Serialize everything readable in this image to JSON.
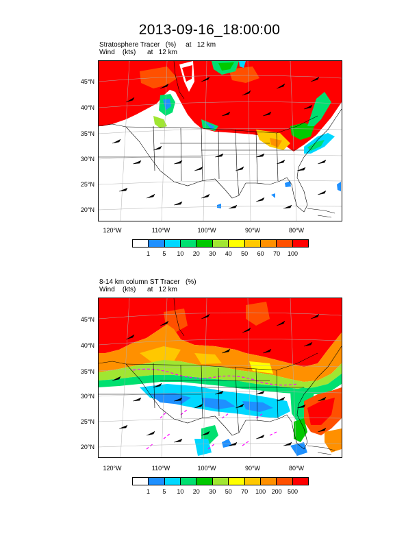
{
  "title": "2013-09-16_18:00:00",
  "panels": [
    {
      "title_line1": "Stratosphere Tracer   (%)     at   12 km",
      "title_line2": "Wind    (kts)      at   12 km",
      "lat_labels": [
        "45°N",
        "40°N",
        "35°N",
        "30°N",
        "25°N",
        "20°N"
      ],
      "lon_labels": [
        "120°W",
        "110°W",
        "100°W",
        "90°W",
        "80°W"
      ],
      "colorbar": {
        "labels": [
          "1",
          "5",
          "10",
          "20",
          "30",
          "40",
          "50",
          "60",
          "70",
          "100"
        ],
        "colors": [
          "#ffffff",
          "#1e90ff",
          "#00d8ff",
          "#00e070",
          "#00c800",
          "#a0e632",
          "#ffff00",
          "#ffc800",
          "#ff9000",
          "#ff5000",
          "#ff0000"
        ]
      }
    },
    {
      "title_line1": "8-14 km column ST Tracer   (%)",
      "title_line2": "Wind    (kts)      at   12 km",
      "lat_labels": [
        "45°N",
        "40°N",
        "35°N",
        "30°N",
        "25°N",
        "20°N"
      ],
      "lon_labels": [
        "120°W",
        "110°W",
        "100°W",
        "90°W",
        "80°W"
      ],
      "colorbar": {
        "labels": [
          "1",
          "5",
          "10",
          "20",
          "30",
          "50",
          "70",
          "100",
          "200",
          "500"
        ],
        "colors": [
          "#ffffff",
          "#1e90ff",
          "#00d8ff",
          "#00e070",
          "#00c800",
          "#a0e632",
          "#ffff00",
          "#ffc800",
          "#ff9000",
          "#ff5000",
          "#ff0000"
        ]
      }
    }
  ]
}
